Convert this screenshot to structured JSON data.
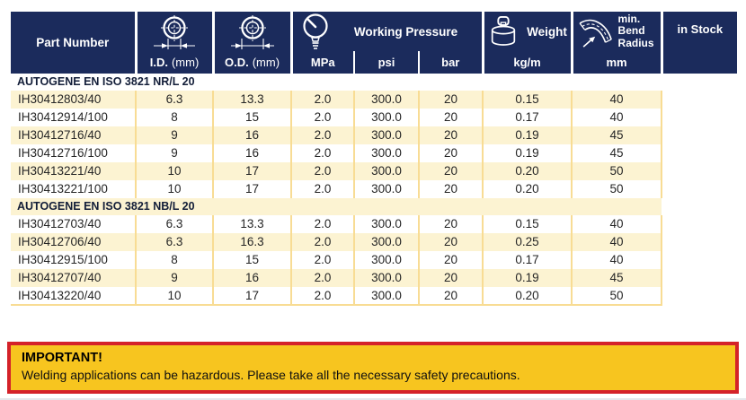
{
  "colors": {
    "header_navy": "#1b2b5c",
    "row_yellow": "#fcf3d2",
    "grid_yellow": "#f8dc94",
    "warning_yellow": "#f7c51f",
    "warning_red": "#d42229"
  },
  "header": {
    "part_number": "Part Number",
    "id_abbr": "I.D.",
    "od_abbr": "O.D.",
    "mm_suffix": "(mm)",
    "working_pressure": "Working Pressure",
    "pressure_units": [
      "MPa",
      "psi",
      "bar"
    ],
    "weight": "Weight",
    "weight_unit": "kg/m",
    "bend_radius": "min. Bend Radius",
    "bend_unit": "mm",
    "in_stock": "in Stock",
    "icons": {
      "id": "hose-inner-diameter-icon",
      "od": "hose-outer-diameter-icon",
      "pressure": "pressure-gauge-icon",
      "weight": "scale-weight-icon",
      "bend": "bend-radius-icon"
    }
  },
  "table": {
    "columns": [
      "Part Number",
      "I.D. (mm)",
      "O.D. (mm)",
      "MPa",
      "psi",
      "bar",
      "kg/m",
      "mm",
      "in Stock"
    ],
    "sections": [
      {
        "title": "AUTOGENE EN ISO 3821 NR/L 20",
        "rows": [
          [
            "IH30412803/40",
            "6.3",
            "13.3",
            "2.0",
            "300.0",
            "20",
            "0.15",
            "40"
          ],
          [
            "IH30412914/100",
            "8",
            "15",
            "2.0",
            "300.0",
            "20",
            "0.17",
            "40"
          ],
          [
            "IH30412716/40",
            "9",
            "16",
            "2.0",
            "300.0",
            "20",
            "0.19",
            "45"
          ],
          [
            "IH30412716/100",
            "9",
            "16",
            "2.0",
            "300.0",
            "20",
            "0.19",
            "45"
          ],
          [
            "IH30413221/40",
            "10",
            "17",
            "2.0",
            "300.0",
            "20",
            "0.20",
            "50"
          ],
          [
            "IH30413221/100",
            "10",
            "17",
            "2.0",
            "300.0",
            "20",
            "0.20",
            "50"
          ]
        ]
      },
      {
        "title": "AUTOGENE EN ISO 3821 NB/L 20",
        "rows": [
          [
            "IH30412703/40",
            "6.3",
            "13.3",
            "2.0",
            "300.0",
            "20",
            "0.15",
            "40"
          ],
          [
            "IH30412706/40",
            "6.3",
            "16.3",
            "2.0",
            "300.0",
            "20",
            "0.25",
            "40"
          ],
          [
            "IH30412915/100",
            "8",
            "15",
            "2.0",
            "300.0",
            "20",
            "0.17",
            "40"
          ],
          [
            "IH30412707/40",
            "9",
            "16",
            "2.0",
            "300.0",
            "20",
            "0.19",
            "45"
          ],
          [
            "IH30413220/40",
            "10",
            "17",
            "2.0",
            "300.0",
            "20",
            "0.20",
            "50"
          ]
        ]
      }
    ]
  },
  "warning": {
    "title": "IMPORTANT!",
    "text": "Welding applications can be hazardous. Please take all the necessary safety precautions."
  }
}
